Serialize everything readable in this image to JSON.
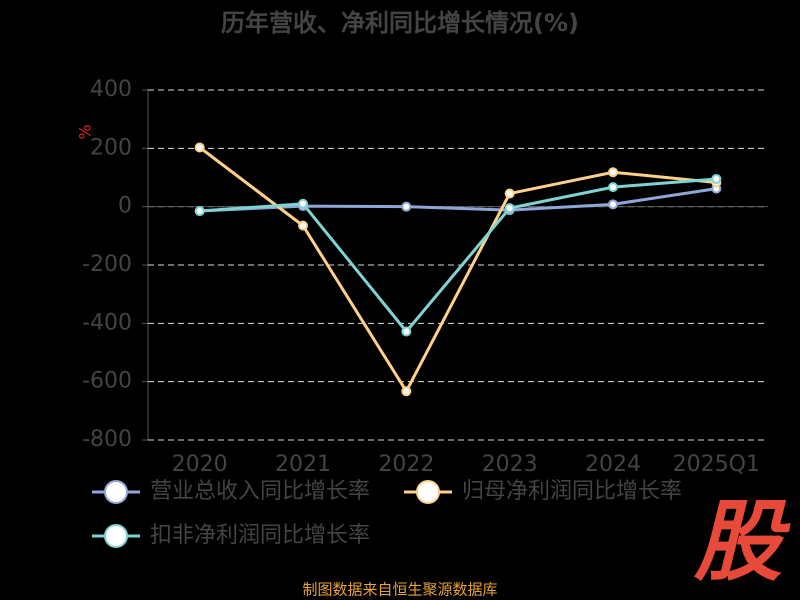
{
  "chart_data": {
    "type": "line",
    "title": "历年营收、净利同比增长情况(%)",
    "y_label": "%",
    "categories": [
      "2020",
      "2021",
      "2022",
      "2023",
      "2024",
      "2025Q1"
    ],
    "series": [
      {
        "name": "营业总收入同比增长率",
        "color": "#8fa6d8",
        "values": [
          -15,
          2,
          0,
          -12,
          8,
          62
        ]
      },
      {
        "name": "归母净利润同比增长率",
        "color": "#ffd08a",
        "values": [
          203,
          -65,
          -633,
          45,
          118,
          83
        ]
      },
      {
        "name": "扣非净利润同比增长率",
        "color": "#7fd3d3",
        "values": [
          -15,
          10,
          -428,
          -5,
          67,
          95
        ]
      }
    ],
    "ylim": [
      -800,
      400
    ],
    "yticks": [
      -800,
      -600,
      -400,
      -200,
      0,
      200,
      400
    ],
    "grid": true,
    "footer": "制图数据来自恒生聚源数据库",
    "logo": "股"
  }
}
